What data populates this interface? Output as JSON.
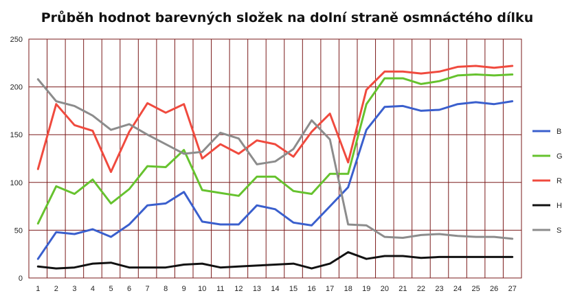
{
  "chart_data": {
    "type": "line",
    "title": "Průběh hodnot barevných složek na dolní straně osmnáctého dílku",
    "xlabel": "",
    "ylabel": "",
    "x": [
      1,
      2,
      3,
      4,
      5,
      6,
      7,
      8,
      9,
      10,
      11,
      12,
      13,
      14,
      15,
      16,
      17,
      18,
      19,
      20,
      21,
      22,
      23,
      24,
      25,
      26,
      27
    ],
    "x_tick_labels": [
      "1",
      "2",
      "3",
      "4",
      "5",
      "6",
      "7",
      "8",
      "9",
      "10",
      "11",
      "12",
      "13",
      "14",
      "15",
      "16",
      "17",
      "18",
      "19",
      "20",
      "21",
      "22",
      "23",
      "24",
      "25",
      "26",
      "27"
    ],
    "ylim": [
      0,
      250
    ],
    "y_ticks": [
      0,
      50,
      100,
      150,
      200,
      250
    ],
    "grid": "horizontal and vertical",
    "legend_position": "right",
    "series": [
      {
        "name": "B",
        "color": "#3a5fcd",
        "values": [
          20,
          48,
          46,
          51,
          43,
          56,
          76,
          78,
          90,
          59,
          56,
          56,
          76,
          72,
          58,
          55,
          75,
          95,
          155,
          179,
          180,
          175,
          176,
          182,
          184,
          182,
          185
        ]
      },
      {
        "name": "G",
        "color": "#66c22e",
        "values": [
          57,
          96,
          88,
          103,
          78,
          93,
          117,
          116,
          134,
          92,
          89,
          86,
          106,
          106,
          91,
          88,
          109,
          109,
          182,
          209,
          209,
          203,
          206,
          212,
          213,
          212,
          213
        ]
      },
      {
        "name": "R",
        "color": "#f04a3e",
        "values": [
          114,
          182,
          160,
          154,
          111,
          153,
          183,
          173,
          182,
          125,
          140,
          130,
          144,
          140,
          127,
          153,
          172,
          121,
          197,
          216,
          216,
          214,
          216,
          221,
          222,
          220,
          222
        ]
      },
      {
        "name": "H",
        "color": "#111111",
        "values": [
          12,
          10,
          11,
          15,
          16,
          11,
          11,
          11,
          14,
          15,
          11,
          12,
          13,
          14,
          15,
          10,
          15,
          27,
          20,
          23,
          23,
          21,
          22,
          22,
          22,
          22,
          22
        ]
      },
      {
        "name": "S",
        "color": "#8c8c8c",
        "values": [
          208,
          185,
          180,
          170,
          155,
          161,
          150,
          140,
          130,
          132,
          152,
          146,
          119,
          122,
          135,
          165,
          145,
          56,
          55,
          43,
          42,
          45,
          46,
          44,
          43,
          43,
          41
        ]
      }
    ]
  }
}
